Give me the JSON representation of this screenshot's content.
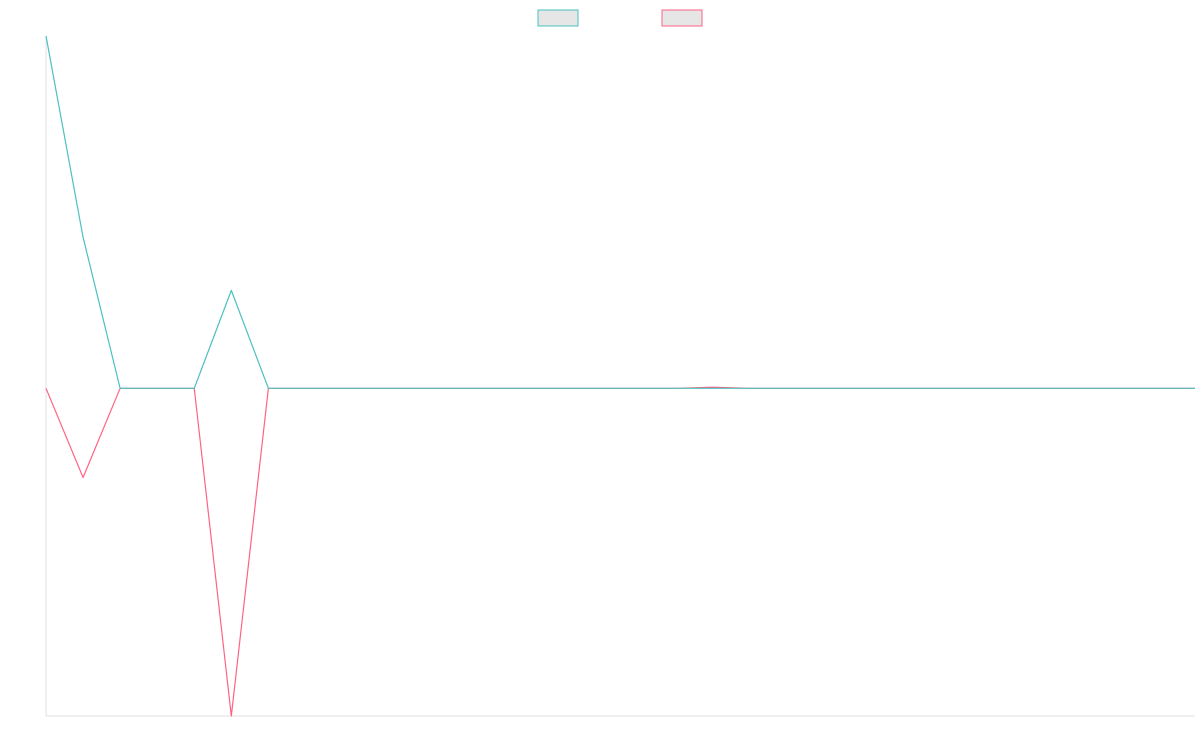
{
  "chart_data": {
    "type": "line",
    "categories": [
      null,
      null,
      null,
      null,
      null,
      null,
      null,
      null,
      null,
      null,
      null,
      null,
      null,
      null,
      null,
      null,
      null,
      null,
      null,
      null,
      null,
      null,
      null,
      null,
      null,
      null,
      null,
      null,
      null,
      null,
      null,
      null
    ],
    "series": [
      {
        "color": "#4bc0c0",
        "values": [
          100,
          42.9,
          0,
          0,
          0,
          27.8,
          0,
          0,
          0,
          0,
          0,
          0,
          0,
          0,
          0,
          0,
          0,
          0,
          0,
          0,
          0,
          0,
          0,
          0,
          0,
          0,
          0,
          0,
          0,
          0,
          0,
          0
        ]
      },
      {
        "color": "#ff6384",
        "values": [
          0,
          -25.3,
          0,
          0,
          0,
          -93,
          0,
          0,
          0,
          0,
          0,
          0,
          0,
          0,
          0,
          0,
          0,
          0,
          0.3,
          0,
          0,
          0,
          0,
          0,
          0,
          0,
          0,
          0,
          0,
          0,
          0,
          0
        ]
      }
    ],
    "ylim": [
      -93,
      100
    ],
    "legend": "top"
  }
}
